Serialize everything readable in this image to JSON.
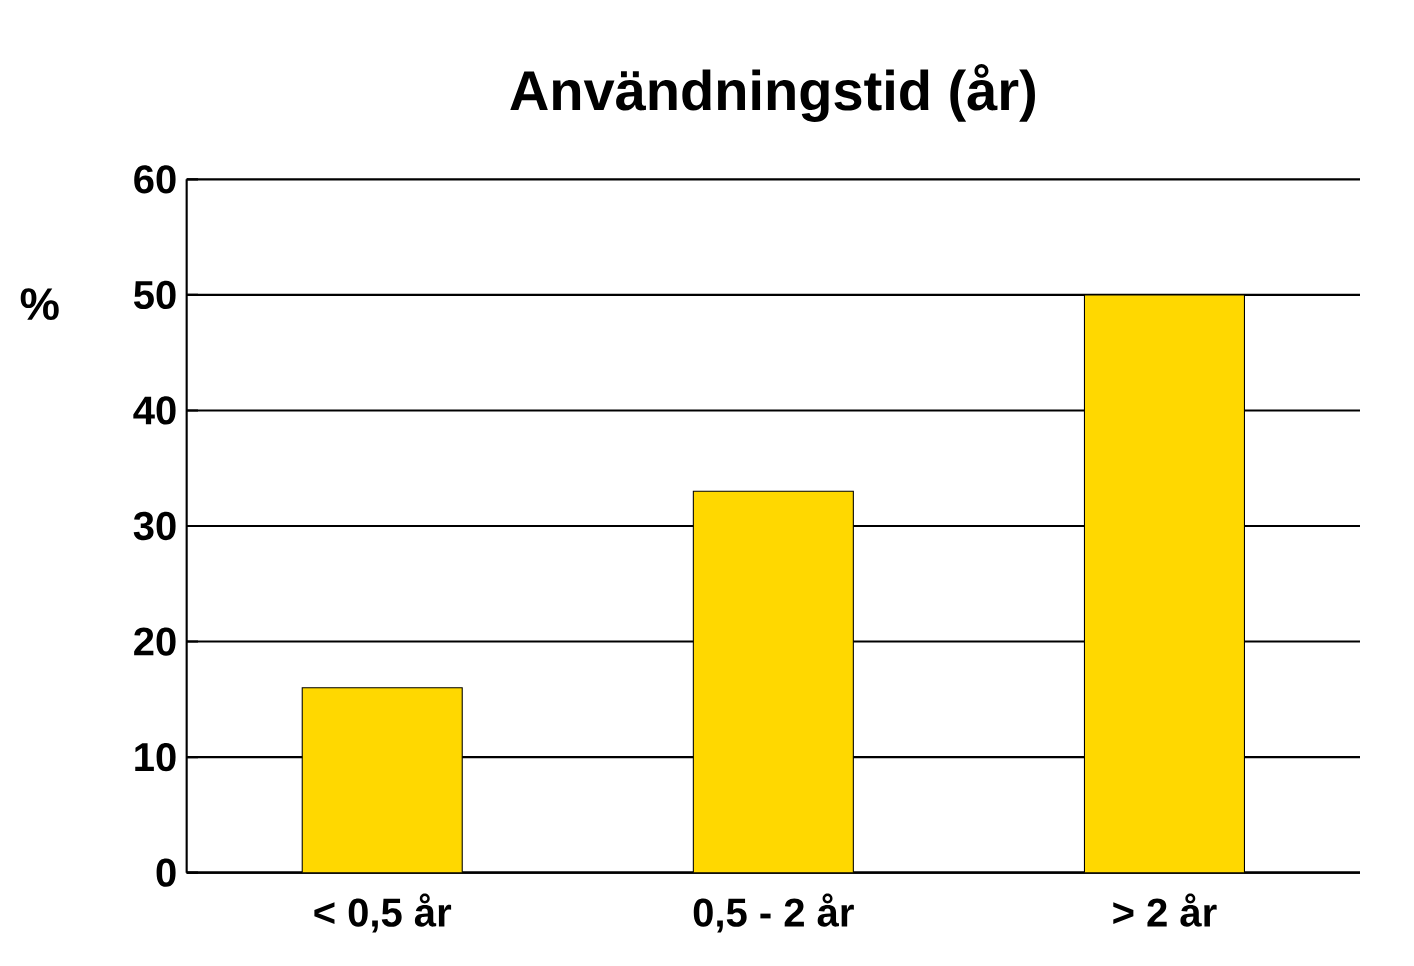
{
  "chart_data": {
    "type": "bar",
    "title": "Användningstid (år)",
    "ylabel": "%",
    "categories": [
      "< 0,5 år",
      "0,5 - 2 år",
      "> 2 år"
    ],
    "values": [
      16,
      33,
      50
    ],
    "color": "#ffd800",
    "ylim": [
      0,
      60
    ],
    "yticks": [
      0,
      10,
      20,
      30,
      40,
      50,
      60
    ],
    "grid": "y"
  }
}
